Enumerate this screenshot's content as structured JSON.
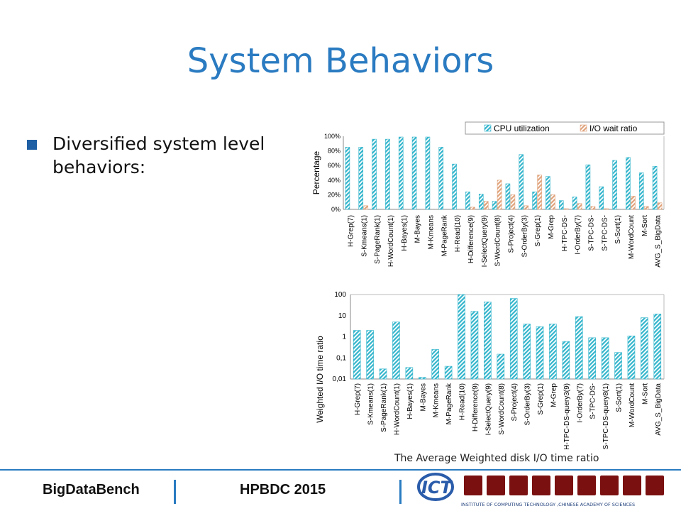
{
  "slide": {
    "title": "System Behaviors",
    "bullet": "Diversified system level behaviors:",
    "caption": "The Average Weighted disk I/O time ratio"
  },
  "footer": {
    "left": "BigDataBench",
    "middle": "HPBDC 2015",
    "logo_text": "INSTITUTE OF COMPUTING TECHNOLOGY ,CHINESE ACADEMY OF SCIENCES"
  },
  "colors": {
    "accent": "#2a7bc1",
    "cpu": "#33b5cc",
    "io": "#e0a27a"
  },
  "chart_data": [
    {
      "type": "bar",
      "ylabel": "Percentage",
      "yticks": [
        "0%",
        "20%",
        "40%",
        "60%",
        "80%",
        "100%"
      ],
      "ylim": [
        0,
        100
      ],
      "legend": "top-right",
      "categories": [
        "H-Grep(7)",
        "S-Kmeans(1)",
        "S-PageRank(1)",
        "H-WordCount(1)",
        "H-Bayes(1)",
        "M-Bayes",
        "M-Kmeans",
        "M-PageRank",
        "H-Read(10)",
        "H-Difference(9)",
        "I-SelectQuery(9)",
        "S-WordCount(8)",
        "S-Project(4)",
        "S-OrderBy(3)",
        "S-Grep(1)",
        "M-Grep",
        "H-TPC-DS-",
        "I-OrderBy(7)",
        "S-TPC-DS-",
        "S-TPC-DS-",
        "S-Sort(1)",
        "M-WordCount",
        "M-Sort",
        "AVG_S_BigData"
      ],
      "series": [
        {
          "name": "CPU utilization",
          "values": [
            85,
            85,
            96,
            96,
            99,
            99,
            99,
            85,
            62,
            24,
            21,
            11,
            35,
            75,
            24,
            45,
            12,
            17,
            61,
            31,
            67,
            71,
            50,
            59
          ]
        },
        {
          "name": "I/O wait ratio",
          "values": [
            0,
            5,
            0,
            0,
            0,
            0,
            0,
            0,
            0,
            3,
            11,
            40,
            20,
            5,
            47,
            20,
            1,
            8,
            4,
            1,
            0,
            18,
            4,
            9
          ]
        }
      ]
    },
    {
      "type": "bar",
      "ylabel": "Weighted I/O time ratio",
      "yscale": "log",
      "yticks": [
        "0,01",
        "0,1",
        "1",
        "10",
        "100"
      ],
      "ylim": [
        0.01,
        100
      ],
      "categories": [
        "H-Grep(7)",
        "S-Kmeans(1)",
        "S-PageRank(1)",
        "H-WordCount(1)",
        "H-Bayes(1)",
        "M-Bayes",
        "M-Kmeans",
        "M-PageRank",
        "H-Read(10)",
        "H-Difference(9)",
        "I-SelectQuery(9)",
        "S-WordCount(8)",
        "S-Project(4)",
        "S-OrderBy(3)",
        "S-Grep(1)",
        "M-Grep",
        "H-TPC-DS-query3(9)",
        "I-OrderBy(7)",
        "S-TPC-DS-",
        "S-TPC-DS-query8(1)",
        "S-Sort(1)",
        "M-WordCount",
        "M-Sort",
        "AVG_S_BigData"
      ],
      "series": [
        {
          "name": "",
          "values": [
            2,
            2,
            0.03,
            5,
            0.035,
            0.012,
            0.25,
            0.04,
            110,
            16,
            45,
            0.15,
            65,
            4,
            3,
            4,
            0.6,
            9,
            0.9,
            0.9,
            0.18,
            1.1,
            8,
            12
          ]
        }
      ]
    }
  ]
}
